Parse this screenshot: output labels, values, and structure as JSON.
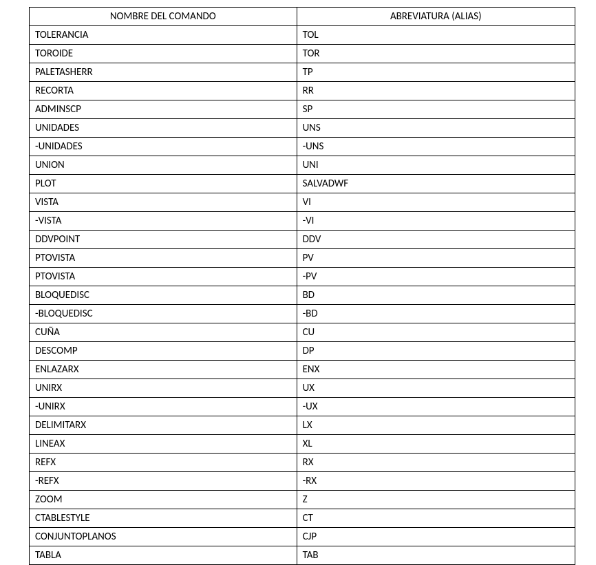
{
  "table": {
    "columns": [
      "NOMBRE DEL COMANDO",
      "ABREVIATURA (ALIAS)"
    ],
    "rows": [
      [
        "TOLERANCIA",
        "TOL"
      ],
      [
        "TOROIDE",
        "TOR"
      ],
      [
        "PALETASHERR",
        "TP"
      ],
      [
        "RECORTA",
        "RR"
      ],
      [
        "ADMINSCP",
        "SP"
      ],
      [
        "UNIDADES",
        "UNS"
      ],
      [
        "-UNIDADES",
        "-UNS"
      ],
      [
        "UNION",
        "UNI"
      ],
      [
        "PLOT",
        "SALVADWF"
      ],
      [
        "VISTA",
        "VI"
      ],
      [
        "-VISTA",
        "-VI"
      ],
      [
        "DDVPOINT",
        "DDV"
      ],
      [
        "PTOVISTA",
        "PV"
      ],
      [
        "PTOVISTA",
        "-PV"
      ],
      [
        "BLOQUEDISC",
        "BD"
      ],
      [
        "-BLOQUEDISC",
        "-BD"
      ],
      [
        "CUÑA",
        "CU"
      ],
      [
        "DESCOMP",
        "DP"
      ],
      [
        "ENLAZARX",
        "ENX"
      ],
      [
        "UNIRX",
        "UX"
      ],
      [
        "-UNIRX",
        "-UX"
      ],
      [
        "DELIMITARX",
        "LX"
      ],
      [
        "LINEAX",
        "XL"
      ],
      [
        "REFX",
        "RX"
      ],
      [
        "-REFX",
        "-RX"
      ],
      [
        "ZOOM",
        "Z"
      ],
      [
        "CTABLESTYLE",
        "CT"
      ],
      [
        "CONJUNTOPLANOS",
        "CJP"
      ],
      [
        "TABLA",
        "TAB"
      ]
    ],
    "col_widths_pct": [
      49,
      51
    ],
    "border_color": "#000000",
    "background_color": "#ffffff",
    "text_color": "#000000",
    "font_family": "Calibri",
    "font_size_pt": 11,
    "header_align": "center",
    "cell_align": "left"
  }
}
